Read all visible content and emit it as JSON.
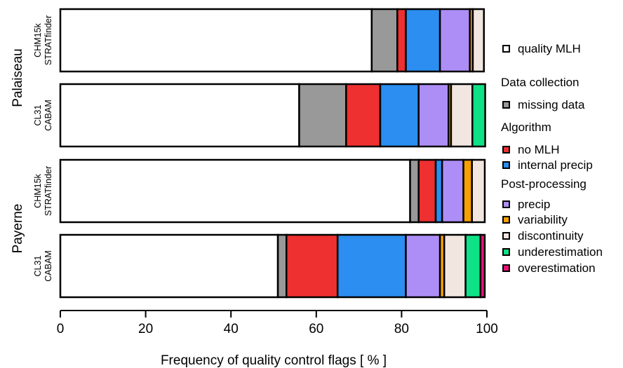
{
  "chart_data": {
    "type": "bar",
    "orientation": "horizontal",
    "stacked": true,
    "xlabel": "Frequency of quality control flags [ % ]",
    "xlim": [
      0,
      100
    ],
    "xticks": [
      "0",
      "20",
      "40",
      "60",
      "80",
      "100"
    ],
    "grid": false,
    "legend_position": "right",
    "groups": [
      {
        "name": "Palaiseau",
        "rows": [
          {
            "label": [
              "CHM15k",
              "STRATfinder"
            ],
            "values": [
              73,
              6,
              2,
              8,
              7,
              0.7,
              2.6,
              0,
              0
            ]
          },
          {
            "label": [
              "CL31",
              "CABAM"
            ],
            "values": [
              56,
              11,
              8,
              9,
              7,
              0.6,
              5,
              3,
              0
            ]
          }
        ]
      },
      {
        "name": "Payerne",
        "rows": [
          {
            "label": [
              "CHM15k",
              "STRATfinder"
            ],
            "values": [
              82,
              2,
              4,
              1.5,
              5,
              2,
              3,
              0,
              0
            ]
          },
          {
            "label": [
              "CL31",
              "CABAM"
            ],
            "values": [
              51,
              2,
              12,
              16,
              8,
              1,
              5,
              3.5,
              1
            ]
          }
        ]
      }
    ],
    "series": [
      {
        "name": "quality MLH",
        "color": "#ffffff"
      },
      {
        "name": "missing data",
        "color": "#999999"
      },
      {
        "name": "no MLH",
        "color": "#ee3030"
      },
      {
        "name": "internal precip",
        "color": "#2b8ef0"
      },
      {
        "name": "precip",
        "color": "#ad8ef7"
      },
      {
        "name": "variability",
        "color": "#f5a003"
      },
      {
        "name": "discontinuity",
        "color": "#f2e6e0"
      },
      {
        "name": "underestimation",
        "color": "#0ee186"
      },
      {
        "name": "overestimation",
        "color": "#e8127a"
      }
    ],
    "legend": {
      "entries": [
        {
          "kind": "item",
          "series": 0
        },
        {
          "kind": "heading",
          "text": "Data collection"
        },
        {
          "kind": "item",
          "series": 1
        },
        {
          "kind": "heading",
          "text": "Algorithm"
        },
        {
          "kind": "item",
          "series": 2
        },
        {
          "kind": "item",
          "series": 3
        },
        {
          "kind": "heading",
          "text": "Post-processing"
        },
        {
          "kind": "item",
          "series": 4
        },
        {
          "kind": "item",
          "series": 5
        },
        {
          "kind": "item",
          "series": 6
        },
        {
          "kind": "item",
          "series": 7
        },
        {
          "kind": "item",
          "series": 8
        }
      ]
    }
  }
}
